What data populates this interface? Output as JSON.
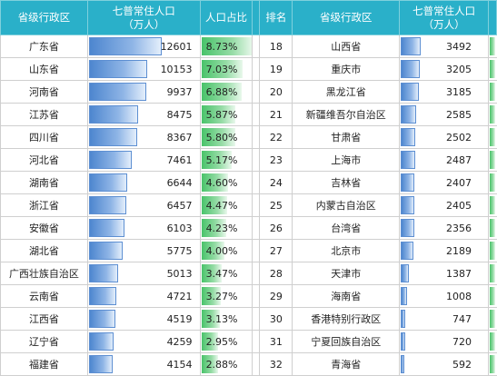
{
  "headers": {
    "province": "省级行政区",
    "pop_line1": "七普常住人口",
    "pop_line2": "（万人）",
    "pct": "人口占比",
    "rank": "排名",
    "province2": "省级行政区",
    "pop2_line1": "七普常住人口",
    "pop2_line2": "（万人）"
  },
  "max_population": 12601,
  "max_percent": 8.73,
  "left_rows": [
    {
      "province": "广东省",
      "population": "12601",
      "percent": "8.73%"
    },
    {
      "province": "山东省",
      "population": "10153",
      "percent": "7.03%"
    },
    {
      "province": "河南省",
      "population": "9937",
      "percent": "6.88%"
    },
    {
      "province": "江苏省",
      "population": "8475",
      "percent": "5.87%"
    },
    {
      "province": "四川省",
      "population": "8367",
      "percent": "5.80%"
    },
    {
      "province": "河北省",
      "population": "7461",
      "percent": "5.17%"
    },
    {
      "province": "湖南省",
      "population": "6644",
      "percent": "4.60%"
    },
    {
      "province": "浙江省",
      "population": "6457",
      "percent": "4.47%"
    },
    {
      "province": "安徽省",
      "population": "6103",
      "percent": "4.23%"
    },
    {
      "province": "湖北省",
      "population": "5775",
      "percent": "4.00%"
    },
    {
      "province": "广西壮族自治区",
      "population": "5013",
      "percent": "3.47%"
    },
    {
      "province": "云南省",
      "population": "4721",
      "percent": "3.27%"
    },
    {
      "province": "江西省",
      "population": "4519",
      "percent": "3.13%"
    },
    {
      "province": "辽宁省",
      "population": "4259",
      "percent": "2.95%"
    },
    {
      "province": "福建省",
      "population": "4154",
      "percent": "2.88%"
    }
  ],
  "right_rows": [
    {
      "rank": "18",
      "province": "山西省",
      "population": "3492"
    },
    {
      "rank": "19",
      "province": "重庆市",
      "population": "3205"
    },
    {
      "rank": "20",
      "province": "黑龙江省",
      "population": "3185"
    },
    {
      "rank": "21",
      "province": "新疆维吾尔自治区",
      "population": "2585"
    },
    {
      "rank": "22",
      "province": "甘肃省",
      "population": "2502"
    },
    {
      "rank": "23",
      "province": "上海市",
      "population": "2487"
    },
    {
      "rank": "24",
      "province": "吉林省",
      "population": "2407"
    },
    {
      "rank": "25",
      "province": "内蒙古自治区",
      "population": "2405"
    },
    {
      "rank": "26",
      "province": "台湾省",
      "population": "2356"
    },
    {
      "rank": "27",
      "province": "北京市",
      "population": "2189"
    },
    {
      "rank": "28",
      "province": "天津市",
      "population": "1387"
    },
    {
      "rank": "29",
      "province": "海南省",
      "population": "1008"
    },
    {
      "rank": "30",
      "province": "香港特别行政区",
      "population": "747"
    },
    {
      "rank": "31",
      "province": "宁夏回族自治区",
      "population": "720"
    },
    {
      "rank": "32",
      "province": "青海省",
      "population": "592"
    }
  ]
}
